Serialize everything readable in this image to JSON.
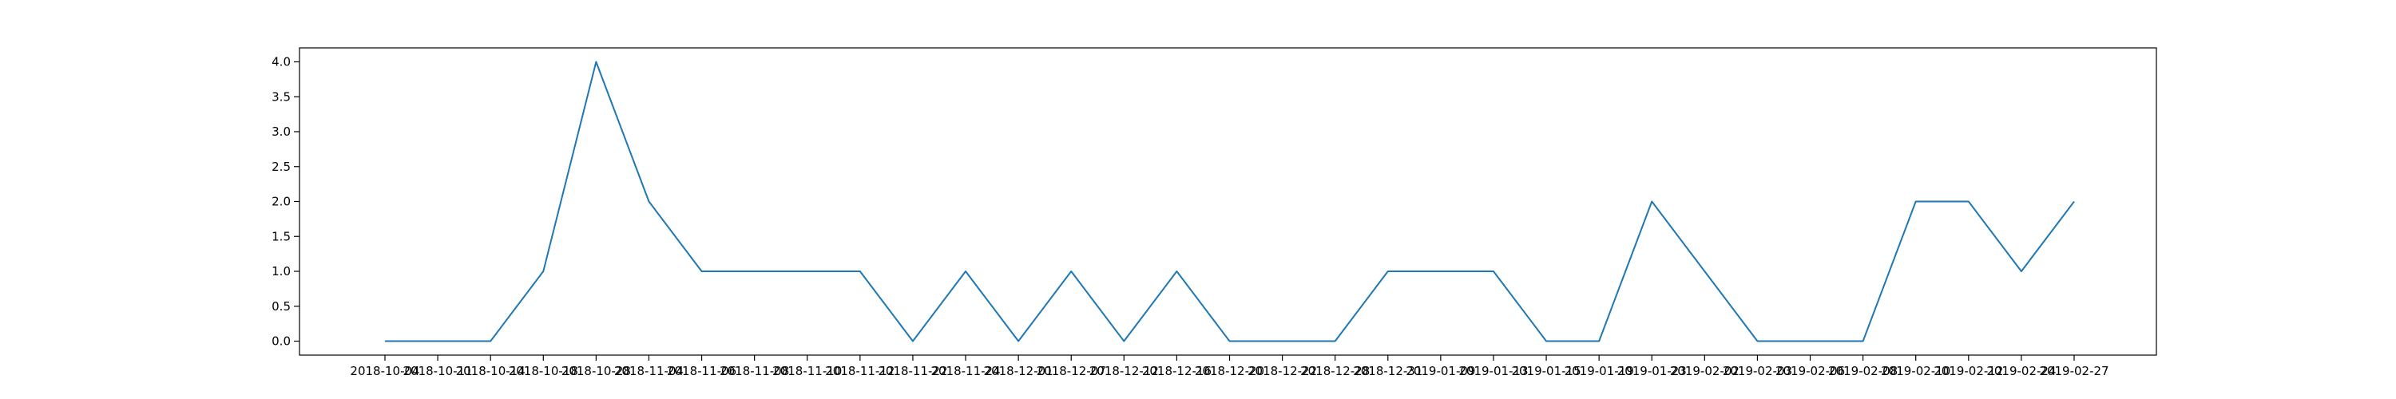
{
  "chart_data": {
    "type": "line",
    "title": "",
    "xlabel": "",
    "ylabel": "",
    "categories": [
      "2018-10-04",
      "2018-10-11",
      "2018-10-14",
      "2018-10-18",
      "2018-10-28",
      "2018-11-04",
      "2018-11-06",
      "2018-11-08",
      "2018-11-10",
      "2018-11-12",
      "2018-11-22",
      "2018-11-24",
      "2018-12-01",
      "2018-12-07",
      "2018-12-12",
      "2018-12-16",
      "2018-12-20",
      "2018-12-22",
      "2018-12-28",
      "2018-12-31",
      "2019-01-09",
      "2019-01-13",
      "2019-01-15",
      "2019-01-19",
      "2019-01-23",
      "2019-02-02",
      "2019-02-03",
      "2019-02-06",
      "2019-02-08",
      "2019-02-10",
      "2019-02-12",
      "2019-02-24",
      "2019-02-27"
    ],
    "series": [
      {
        "color": "#1f77b4",
        "values": [
          0,
          0,
          0,
          1,
          4,
          2,
          1,
          1,
          1,
          1,
          0,
          1,
          0,
          1,
          0,
          1,
          0,
          0,
          0,
          1,
          1,
          1,
          0,
          0,
          2,
          1,
          0,
          0,
          0,
          2,
          2,
          1,
          2
        ]
      }
    ],
    "ylim": [
      -0.2,
      4.2
    ],
    "yticks": [
      "0.0",
      "0.5",
      "1.0",
      "1.5",
      "2.0",
      "2.5",
      "3.0",
      "3.5",
      "4.0"
    ],
    "grid": false,
    "legend": "none"
  }
}
